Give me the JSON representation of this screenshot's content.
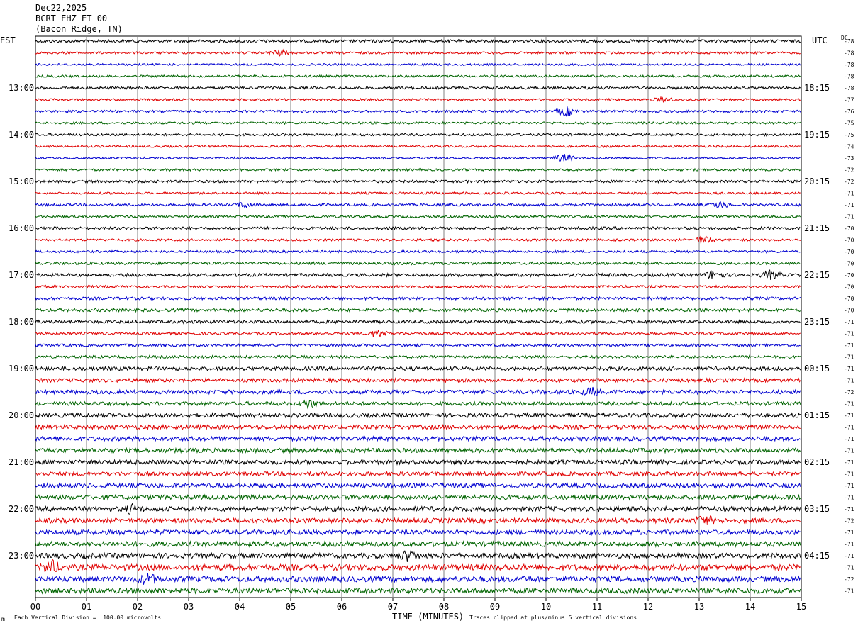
{
  "header": {
    "date": "Dec22,2025",
    "station": "BCRT EHZ ET 00",
    "location": "(Bacon Ridge, TN)"
  },
  "left_timezone": "EST",
  "right_timezone": "UTC",
  "dc_label": "DC",
  "footer": {
    "x_axis_title": "TIME (MINUTES)",
    "scale_note": "Each Vertical Division =  100.00 microvolts",
    "clip_note": "Traces clipped at plus/minus 5 vertical divisions",
    "corner_mark": "m"
  },
  "colors": {
    "trace_cycle": [
      "#000000",
      "#e00000",
      "#0000d0",
      "#006400"
    ],
    "grid": "#808080",
    "frame": "#000000"
  },
  "chart_data": {
    "type": "line",
    "title": "",
    "xlabel": "TIME (MINUTES)",
    "ylabel": "",
    "xlim": [
      0,
      15
    ],
    "x_ticks": [
      "00",
      "01",
      "02",
      "03",
      "04",
      "05",
      "06",
      "07",
      "08",
      "09",
      "10",
      "11",
      "12",
      "13",
      "14",
      "15"
    ],
    "grid": true,
    "rows_per_hour": 4,
    "row_count": 48,
    "left_hour_labels": [
      {
        "row": 4,
        "label": "13:00"
      },
      {
        "row": 8,
        "label": "14:00"
      },
      {
        "row": 12,
        "label": "15:00"
      },
      {
        "row": 16,
        "label": "16:00"
      },
      {
        "row": 20,
        "label": "17:00"
      },
      {
        "row": 24,
        "label": "18:00"
      },
      {
        "row": 28,
        "label": "19:00"
      },
      {
        "row": 32,
        "label": "20:00"
      },
      {
        "row": 36,
        "label": "21:00"
      },
      {
        "row": 40,
        "label": "22:00"
      },
      {
        "row": 44,
        "label": "23:00"
      }
    ],
    "right_hour_labels": [
      {
        "row": 4,
        "label": "18:15"
      },
      {
        "row": 8,
        "label": "19:15"
      },
      {
        "row": 12,
        "label": "20:15"
      },
      {
        "row": 16,
        "label": "21:15"
      },
      {
        "row": 20,
        "label": "22:15"
      },
      {
        "row": 24,
        "label": "23:15"
      },
      {
        "row": 28,
        "label": "00:15"
      },
      {
        "row": 32,
        "label": "01:15"
      },
      {
        "row": 36,
        "label": "02:15"
      },
      {
        "row": 40,
        "label": "03:15"
      },
      {
        "row": 44,
        "label": "04:15"
      }
    ],
    "dc_offsets": [
      "-78",
      "-78",
      "-78",
      "-78",
      "-78",
      "-77",
      "-76",
      "-75",
      "-75",
      "-74",
      "-73",
      "-72",
      "-72",
      "-71",
      "-71",
      "-71",
      "-70",
      "-70",
      "-70",
      "-70",
      "-70",
      "-70",
      "-70",
      "-70",
      "-71",
      "-71",
      "-71",
      "-71",
      "-71",
      "-71",
      "-72",
      "-71",
      "-71",
      "-71",
      "-71",
      "-71",
      "-71",
      "-71",
      "-71",
      "-71",
      "-71",
      "-72",
      "-71",
      "-71",
      "-71",
      "-71",
      "-72",
      "-71"
    ],
    "noise_amplitude_by_row": [
      2.0,
      1.6,
      1.4,
      1.6,
      1.8,
      1.5,
      1.6,
      1.6,
      1.7,
      1.5,
      1.5,
      1.6,
      1.8,
      1.5,
      1.8,
      1.6,
      2.0,
      1.6,
      1.6,
      2.0,
      2.2,
      1.8,
      2.0,
      2.2,
      2.2,
      1.8,
      1.8,
      1.9,
      2.6,
      2.6,
      2.8,
      2.6,
      3.0,
      3.0,
      3.0,
      3.0,
      3.0,
      2.8,
      3.2,
      3.2,
      3.4,
      3.4,
      3.4,
      3.6,
      3.6,
      4.2,
      3.8,
      3.6
    ],
    "events": [
      {
        "row": 1,
        "minute": 4.75,
        "amplitude": 4
      },
      {
        "row": 5,
        "minute": 12.3,
        "amplitude": 3
      },
      {
        "row": 6,
        "minute": 10.4,
        "amplitude": 6
      },
      {
        "row": 10,
        "minute": 10.35,
        "amplitude": 5
      },
      {
        "row": 14,
        "minute": 4.1,
        "amplitude": 4
      },
      {
        "row": 14,
        "minute": 13.4,
        "amplitude": 4
      },
      {
        "row": 17,
        "minute": 13.1,
        "amplitude": 5
      },
      {
        "row": 20,
        "minute": 13.3,
        "amplitude": 6
      },
      {
        "row": 20,
        "minute": 14.4,
        "amplitude": 5
      },
      {
        "row": 25,
        "minute": 6.7,
        "amplitude": 5
      },
      {
        "row": 30,
        "minute": 10.9,
        "amplitude": 5
      },
      {
        "row": 31,
        "minute": 5.35,
        "amplitude": 5
      },
      {
        "row": 40,
        "minute": 1.9,
        "amplitude": 5
      },
      {
        "row": 41,
        "minute": 13.1,
        "amplitude": 6
      },
      {
        "row": 44,
        "minute": 7.3,
        "amplitude": 6
      },
      {
        "row": 45,
        "minute": 0.3,
        "amplitude": 8
      },
      {
        "row": 46,
        "minute": 2.2,
        "amplitude": 6
      }
    ]
  }
}
